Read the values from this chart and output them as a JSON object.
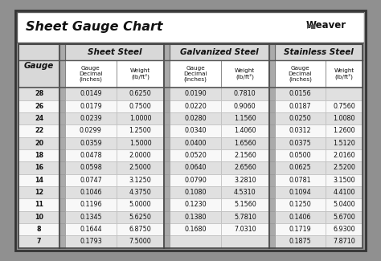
{
  "title": "Sheet Gauge Chart",
  "bg_outer": "#909090",
  "bg_inner": "#ffffff",
  "row_bg_odd": "#e0e0e0",
  "row_bg_even": "#f8f8f8",
  "header_bg": "#d8d8d8",
  "gauges": [
    28,
    26,
    24,
    22,
    20,
    18,
    16,
    14,
    12,
    11,
    10,
    8,
    7
  ],
  "sheet_steel": {
    "decimal": [
      "0.0149",
      "0.0179",
      "0.0239",
      "0.0299",
      "0.0359",
      "0.0478",
      "0.0598",
      "0.0747",
      "0.1046",
      "0.1196",
      "0.1345",
      "0.1644",
      "0.1793"
    ],
    "weight": [
      "0.6250",
      "0.7500",
      "1.0000",
      "1.2500",
      "1.5000",
      "2.0000",
      "2.5000",
      "3.1250",
      "4.3750",
      "5.0000",
      "5.6250",
      "6.8750",
      "7.5000"
    ]
  },
  "galvanized_steel": {
    "decimal": [
      "0.0190",
      "0.0220",
      "0.0280",
      "0.0340",
      "0.0400",
      "0.0520",
      "0.0640",
      "0.0790",
      "0.1080",
      "0.1230",
      "0.1380",
      "0.1680",
      ""
    ],
    "weight": [
      "0.7810",
      "0.9060",
      "1.1560",
      "1.4060",
      "1.6560",
      "2.1560",
      "2.6560",
      "3.2810",
      "4.5310",
      "5.1560",
      "5.7810",
      "7.0310",
      ""
    ]
  },
  "stainless_steel": {
    "decimal": [
      "0.0156",
      "0.0187",
      "0.0250",
      "0.0312",
      "0.0375",
      "0.0500",
      "0.0625",
      "0.0781",
      "0.1094",
      "0.1250",
      "0.1406",
      "0.1719",
      "0.1875"
    ],
    "weight": [
      "",
      "0.7560",
      "1.0080",
      "1.2600",
      "1.5120",
      "2.0160",
      "2.5200",
      "3.1500",
      "4.4100",
      "5.0400",
      "5.6700",
      "6.9300",
      "7.8710"
    ]
  }
}
